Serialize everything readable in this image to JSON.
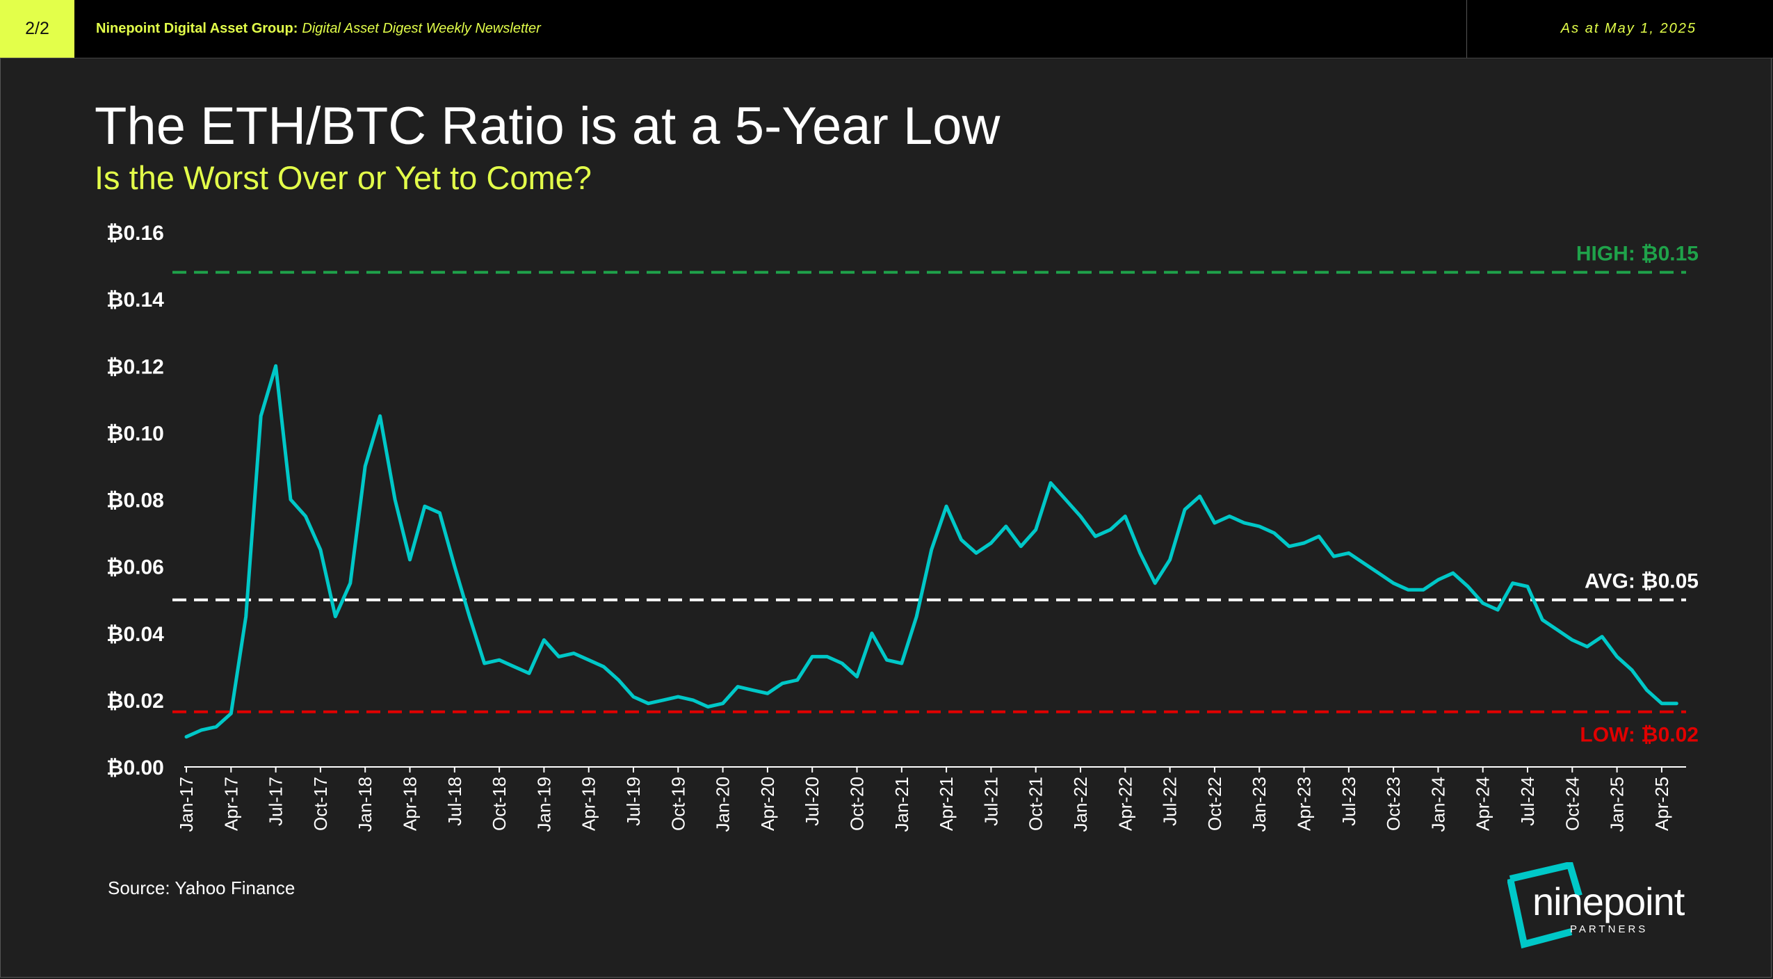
{
  "header": {
    "page_indicator": "2/2",
    "organization": "Ninepoint Digital Asset Group",
    "separator": ":",
    "publication": "Digital Asset Digest Weekly Newsletter",
    "as_at": "As at May 1, 2025"
  },
  "title": "The ETH/BTC Ratio is at a 5-Year Low",
  "subtitle": "Is the Worst Over or Yet to Come?",
  "source": "Source: Yahoo Finance",
  "logo": {
    "word": "ninepoint",
    "sub": "PARTNERS"
  },
  "colors": {
    "background": "#1f1f1f",
    "accent": "#e3ff4a",
    "line": "#00c8c8",
    "high": "#1fa24a",
    "avg": "#ffffff",
    "low": "#e00000"
  },
  "chart_data": {
    "type": "line",
    "title": "The ETH/BTC Ratio is at a 5-Year Low",
    "ylim": [
      0,
      0.16
    ],
    "y_ticks": [
      {
        "value": 0.0,
        "label": "₿0.00"
      },
      {
        "value": 0.02,
        "label": "₿0.02"
      },
      {
        "value": 0.04,
        "label": "₿0.04"
      },
      {
        "value": 0.06,
        "label": "₿0.06"
      },
      {
        "value": 0.08,
        "label": "₿0.08"
      },
      {
        "value": 0.1,
        "label": "₿0.10"
      },
      {
        "value": 0.12,
        "label": "₿0.12"
      },
      {
        "value": 0.14,
        "label": "₿0.14"
      },
      {
        "value": 0.16,
        "label": "₿0.16"
      }
    ],
    "x_tick_labels": [
      "Jan-17",
      "Apr-17",
      "Jul-17",
      "Oct-17",
      "Jan-18",
      "Apr-18",
      "Jul-18",
      "Oct-18",
      "Jan-19",
      "Apr-19",
      "Jul-19",
      "Oct-19",
      "Jan-20",
      "Apr-20",
      "Jul-20",
      "Oct-20",
      "Jan-21",
      "Apr-21",
      "Jul-21",
      "Oct-21",
      "Jan-22",
      "Apr-22",
      "Jul-22",
      "Oct-22",
      "Jan-23",
      "Apr-23",
      "Jul-23",
      "Oct-23",
      "Jan-24",
      "Apr-24",
      "Jul-24",
      "Oct-24",
      "Jan-25",
      "Apr-25"
    ],
    "reference_lines": [
      {
        "name": "high",
        "label": "HIGH: ₿0.15",
        "value": 0.148
      },
      {
        "name": "avg",
        "label": "AVG: ₿0.05",
        "value": 0.05
      },
      {
        "name": "low",
        "label": "LOW: ₿0.02",
        "value": 0.0165
      }
    ],
    "series": [
      {
        "x": [
          "2017-01",
          "2017-02",
          "2017-03",
          "2017-04",
          "2017-05",
          "2017-06",
          "2017-07",
          "2017-08",
          "2017-09",
          "2017-10",
          "2017-11",
          "2017-12",
          "2018-01",
          "2018-02",
          "2018-03",
          "2018-04",
          "2018-05",
          "2018-06",
          "2018-07",
          "2018-08",
          "2018-09",
          "2018-10",
          "2018-11",
          "2018-12",
          "2019-01",
          "2019-02",
          "2019-03",
          "2019-04",
          "2019-05",
          "2019-06",
          "2019-07",
          "2019-08",
          "2019-09",
          "2019-10",
          "2019-11",
          "2019-12",
          "2020-01",
          "2020-02",
          "2020-03",
          "2020-04",
          "2020-05",
          "2020-06",
          "2020-07",
          "2020-08",
          "2020-09",
          "2020-10",
          "2020-11",
          "2020-12",
          "2021-01",
          "2021-02",
          "2021-03",
          "2021-04",
          "2021-05",
          "2021-06",
          "2021-07",
          "2021-08",
          "2021-09",
          "2021-10",
          "2021-11",
          "2021-12",
          "2022-01",
          "2022-02",
          "2022-03",
          "2022-04",
          "2022-05",
          "2022-06",
          "2022-07",
          "2022-08",
          "2022-09",
          "2022-10",
          "2022-11",
          "2022-12",
          "2023-01",
          "2023-02",
          "2023-03",
          "2023-04",
          "2023-05",
          "2023-06",
          "2023-07",
          "2023-08",
          "2023-09",
          "2023-10",
          "2023-11",
          "2023-12",
          "2024-01",
          "2024-02",
          "2024-03",
          "2024-04",
          "2024-05",
          "2024-06",
          "2024-07",
          "2024-08",
          "2024-09",
          "2024-10",
          "2024-11",
          "2024-12",
          "2025-01",
          "2025-02",
          "2025-03",
          "2025-04",
          "2025-05"
        ],
        "values": [
          0.009,
          0.011,
          0.012,
          0.016,
          0.045,
          0.105,
          0.12,
          0.08,
          0.075,
          0.065,
          0.045,
          0.055,
          0.09,
          0.105,
          0.08,
          0.062,
          0.078,
          0.076,
          0.06,
          0.045,
          0.031,
          0.032,
          0.03,
          0.028,
          0.038,
          0.033,
          0.034,
          0.032,
          0.03,
          0.026,
          0.021,
          0.019,
          0.02,
          0.021,
          0.02,
          0.018,
          0.019,
          0.024,
          0.023,
          0.022,
          0.025,
          0.026,
          0.033,
          0.033,
          0.031,
          0.027,
          0.04,
          0.032,
          0.031,
          0.045,
          0.065,
          0.078,
          0.068,
          0.064,
          0.067,
          0.072,
          0.066,
          0.071,
          0.085,
          0.08,
          0.075,
          0.069,
          0.071,
          0.075,
          0.064,
          0.055,
          0.062,
          0.077,
          0.081,
          0.073,
          0.075,
          0.073,
          0.072,
          0.07,
          0.066,
          0.067,
          0.069,
          0.063,
          0.064,
          0.061,
          0.058,
          0.055,
          0.053,
          0.053,
          0.056,
          0.058,
          0.054,
          0.049,
          0.047,
          0.055,
          0.054,
          0.044,
          0.041,
          0.038,
          0.036,
          0.039,
          0.033,
          0.029,
          0.023,
          0.019,
          0.019
        ]
      }
    ]
  }
}
